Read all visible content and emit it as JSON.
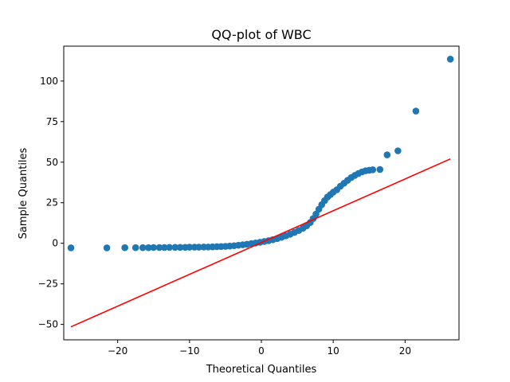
{
  "chart_data": {
    "type": "scatter",
    "title": "QQ-plot of WBC",
    "xlabel": "Theoretical Quantiles",
    "ylabel": "Sample Quantiles",
    "xlim": [
      -27.5,
      27.5
    ],
    "ylim": [
      -59.5,
      121.5
    ],
    "xticks": [
      -20,
      -10,
      0,
      10,
      20
    ],
    "xtick_labels": [
      "−20",
      "−10",
      "0",
      "10",
      "20"
    ],
    "yticks": [
      -50,
      -25,
      0,
      25,
      50,
      75,
      100
    ],
    "ytick_labels": [
      "−50",
      "−25",
      "0",
      "25",
      "50",
      "75",
      "100"
    ],
    "grid": false,
    "colors": {
      "points": "#1f77b4",
      "line": "#ff0000"
    },
    "series": [
      {
        "kind": "points",
        "x": [
          -26.5,
          -21.5,
          -19.0,
          -17.5,
          -16.5,
          -15.7,
          -15.0,
          -14.2,
          -13.5,
          -12.8,
          -12.0,
          -11.3,
          -10.6,
          -10.0,
          -9.3,
          -8.7,
          -8.0,
          -7.4,
          -6.8,
          -6.2,
          -5.6,
          -5.0,
          -4.4,
          -3.8,
          -3.2,
          -2.6,
          -2.0,
          -1.4,
          -0.8,
          -0.2,
          0.4,
          1.0,
          1.6,
          2.2,
          2.8,
          3.4,
          4.0,
          4.6,
          5.2,
          5.8,
          6.3,
          6.8,
          7.2,
          7.6,
          8.0,
          8.4,
          8.8,
          9.2,
          9.6,
          10.0,
          10.5,
          11.0,
          11.5,
          12.0,
          12.5,
          13.0,
          13.5,
          14.0,
          14.5,
          15.0,
          15.5,
          16.5,
          17.5,
          19.0,
          21.5,
          26.3
        ],
        "y": [
          -2.8,
          -2.8,
          -2.7,
          -2.7,
          -2.7,
          -2.7,
          -2.6,
          -2.6,
          -2.6,
          -2.5,
          -2.5,
          -2.5,
          -2.5,
          -2.4,
          -2.4,
          -2.4,
          -2.3,
          -2.3,
          -2.2,
          -2.1,
          -2.0,
          -1.9,
          -1.7,
          -1.5,
          -1.2,
          -0.9,
          -0.6,
          -0.2,
          0.2,
          0.6,
          1.1,
          1.6,
          2.2,
          2.9,
          3.7,
          4.6,
          5.6,
          6.7,
          7.9,
          9.3,
          10.8,
          12.8,
          15.2,
          18.0,
          21.0,
          23.8,
          26.3,
          28.5,
          30.0,
          31.5,
          33.0,
          35.2,
          37.0,
          38.8,
          40.5,
          41.8,
          43.0,
          44.0,
          44.7,
          45.0,
          45.3,
          45.5,
          54.5,
          57.0,
          81.5,
          113.5
        ]
      },
      {
        "kind": "line",
        "x": [
          -26.5,
          26.3
        ],
        "y": [
          -51.5,
          52.0
        ]
      }
    ]
  }
}
